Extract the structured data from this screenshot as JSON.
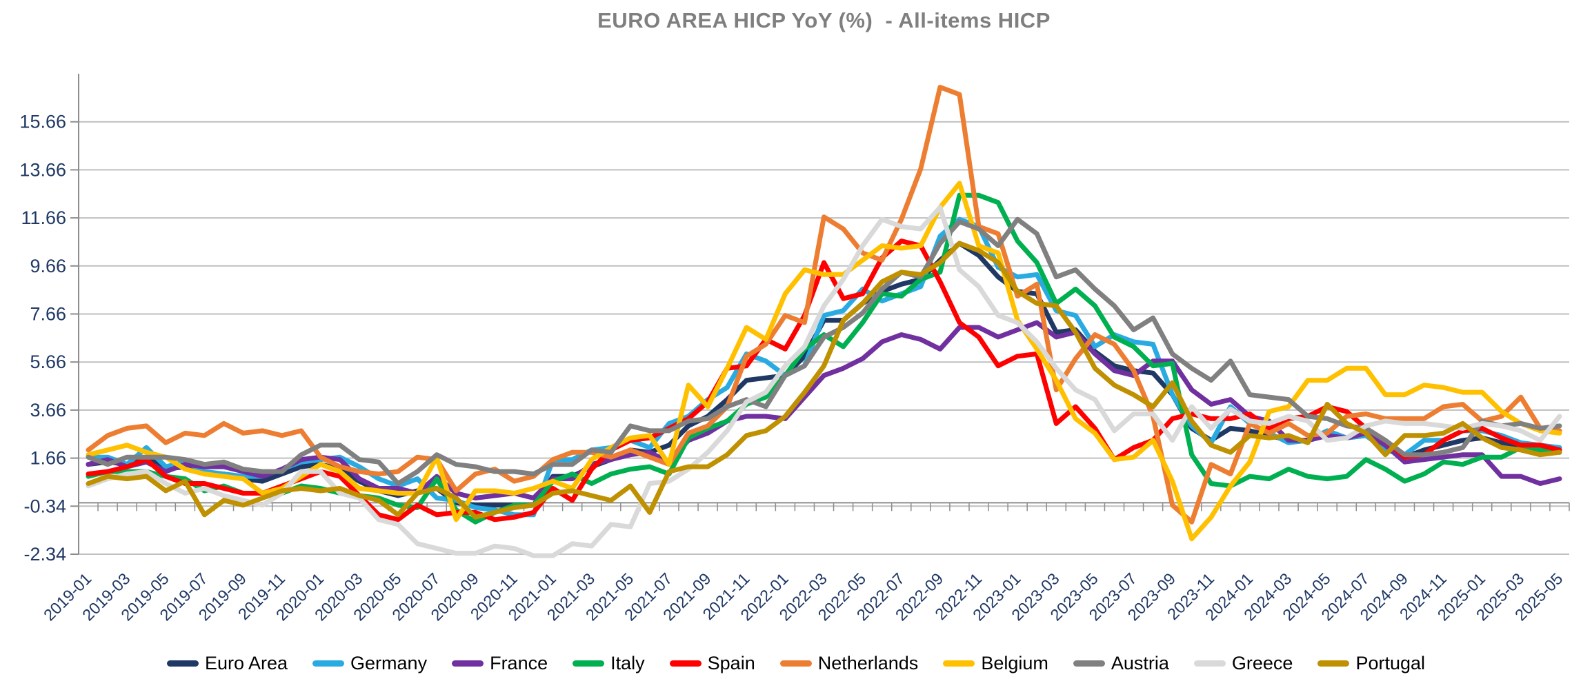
{
  "title": "EURO AREA HICP YoY (%)  - All-items HICP",
  "style": {
    "title_color": "#7F7F7F",
    "label_color": "#1F3864",
    "grid_color": "#BFBFBF",
    "axis_color": "#8C8C8C",
    "background": "#FFFFFF"
  },
  "chart_data": {
    "type": "line",
    "title": "EURO AREA HICP YoY (%)  - All-items HICP",
    "xlabel": "",
    "ylabel": "",
    "ylim": [
      -2.34,
      17.66
    ],
    "grid": true,
    "legend_position": "bottom",
    "x_label_step": 2,
    "y_ticks": [
      {
        "label": "-2.34",
        "value": -2.34
      },
      {
        "label": "-0.34",
        "value": -0.34
      },
      {
        "label": "1.66",
        "value": 1.66
      },
      {
        "label": "3.66",
        "value": 3.66
      },
      {
        "label": "5.66",
        "value": 5.66
      },
      {
        "label": "7.66",
        "value": 7.66
      },
      {
        "label": "9.66",
        "value": 9.66
      },
      {
        "label": "11.66",
        "value": 11.66
      },
      {
        "label": "13.66",
        "value": 13.66
      },
      {
        "label": "15.66",
        "value": 15.66
      }
    ],
    "x": [
      "2019-01",
      "2019-02",
      "2019-03",
      "2019-04",
      "2019-05",
      "2019-06",
      "2019-07",
      "2019-08",
      "2019-09",
      "2019-10",
      "2019-11",
      "2019-12",
      "2020-01",
      "2020-02",
      "2020-03",
      "2020-04",
      "2020-05",
      "2020-06",
      "2020-07",
      "2020-08",
      "2020-09",
      "2020-10",
      "2020-11",
      "2020-12",
      "2021-01",
      "2021-02",
      "2021-03",
      "2021-04",
      "2021-05",
      "2021-06",
      "2021-07",
      "2021-08",
      "2021-09",
      "2021-10",
      "2021-11",
      "2021-12",
      "2022-01",
      "2022-02",
      "2022-03",
      "2022-04",
      "2022-05",
      "2022-06",
      "2022-07",
      "2022-08",
      "2022-09",
      "2022-10",
      "2022-11",
      "2022-12",
      "2023-01",
      "2023-02",
      "2023-03",
      "2023-04",
      "2023-05",
      "2023-06",
      "2023-07",
      "2023-08",
      "2023-09",
      "2023-10",
      "2023-11",
      "2023-12",
      "2024-01",
      "2024-02",
      "2024-03",
      "2024-04",
      "2024-05",
      "2024-06",
      "2024-07",
      "2024-08",
      "2024-09",
      "2024-10",
      "2024-11",
      "2024-12",
      "2025-01",
      "2025-02",
      "2025-03",
      "2025-04",
      "2025-05"
    ],
    "series": [
      {
        "name": "Euro Area",
        "color": "#1F3864",
        "values": [
          1.4,
          1.5,
          1.4,
          1.7,
          1.2,
          1.3,
          1.0,
          1.0,
          0.8,
          0.7,
          1.0,
          1.3,
          1.4,
          1.2,
          0.7,
          0.3,
          0.1,
          0.3,
          0.4,
          -0.2,
          -0.3,
          -0.3,
          -0.3,
          -0.3,
          0.9,
          0.9,
          1.3,
          1.6,
          2.0,
          1.9,
          2.2,
          3.0,
          3.4,
          4.1,
          4.9,
          5.0,
          5.1,
          5.9,
          7.4,
          7.4,
          8.1,
          8.6,
          8.9,
          9.1,
          9.9,
          10.6,
          10.1,
          9.2,
          8.6,
          8.5,
          6.9,
          7.0,
          6.1,
          5.5,
          5.3,
          5.2,
          4.3,
          2.9,
          2.4,
          2.9,
          2.8,
          2.6,
          2.4,
          2.4,
          2.6,
          2.5,
          2.6,
          2.2,
          1.7,
          2.0,
          2.2,
          2.4,
          2.5,
          2.3,
          2.2,
          2.2,
          1.9
        ]
      },
      {
        "name": "Germany",
        "color": "#29ABE2",
        "values": [
          1.7,
          1.7,
          1.4,
          2.1,
          1.3,
          1.5,
          1.1,
          1.0,
          0.9,
          0.9,
          1.2,
          1.5,
          1.6,
          1.7,
          1.3,
          0.8,
          0.5,
          0.8,
          0.0,
          -0.1,
          -0.4,
          -0.5,
          -0.7,
          -0.7,
          1.6,
          1.6,
          2.0,
          2.1,
          2.4,
          2.1,
          3.1,
          3.4,
          4.1,
          4.6,
          6.0,
          5.7,
          5.1,
          5.5,
          7.6,
          7.8,
          8.7,
          8.2,
          8.5,
          8.8,
          10.9,
          11.6,
          11.3,
          9.6,
          9.2,
          9.3,
          7.8,
          7.6,
          6.3,
          6.8,
          6.5,
          6.4,
          4.3,
          3.0,
          2.3,
          3.8,
          3.1,
          2.7,
          2.3,
          2.4,
          2.8,
          2.5,
          2.6,
          2.0,
          1.8,
          2.4,
          2.4,
          2.8,
          2.8,
          2.6,
          2.3,
          2.2,
          2.1
        ]
      },
      {
        "name": "France",
        "color": "#7030A0",
        "values": [
          1.4,
          1.6,
          1.3,
          1.5,
          1.1,
          1.4,
          1.3,
          1.3,
          1.1,
          0.9,
          1.2,
          1.6,
          1.7,
          1.6,
          0.8,
          0.4,
          0.4,
          0.2,
          0.9,
          0.2,
          0.0,
          0.1,
          0.2,
          0.0,
          0.8,
          0.8,
          1.4,
          1.6,
          1.8,
          1.9,
          1.5,
          2.4,
          2.7,
          3.2,
          3.4,
          3.4,
          3.3,
          4.2,
          5.1,
          5.4,
          5.8,
          6.5,
          6.8,
          6.6,
          6.2,
          7.1,
          7.1,
          6.7,
          7.0,
          7.3,
          6.7,
          6.9,
          6.0,
          5.3,
          5.1,
          5.7,
          5.7,
          4.5,
          3.9,
          4.1,
          3.4,
          3.2,
          2.4,
          2.4,
          2.6,
          2.5,
          2.7,
          2.2,
          1.5,
          1.6,
          1.7,
          1.8,
          1.8,
          0.9,
          0.9,
          0.6,
          0.8
        ]
      },
      {
        "name": "Italy",
        "color": "#00B050",
        "values": [
          0.9,
          1.1,
          1.1,
          1.1,
          0.9,
          0.8,
          0.3,
          0.5,
          0.2,
          0.2,
          0.2,
          0.5,
          0.4,
          0.2,
          0.1,
          0.0,
          -0.3,
          -0.4,
          0.8,
          -0.5,
          -1.0,
          -0.6,
          -0.3,
          -0.3,
          0.7,
          1.0,
          0.6,
          1.0,
          1.2,
          1.3,
          1.0,
          2.5,
          2.9,
          3.2,
          3.9,
          4.2,
          5.1,
          6.2,
          6.8,
          6.3,
          7.3,
          8.5,
          8.4,
          9.1,
          9.4,
          12.6,
          12.6,
          12.3,
          10.7,
          9.8,
          8.1,
          8.7,
          8.0,
          6.7,
          6.3,
          5.5,
          5.6,
          1.8,
          0.6,
          0.5,
          0.9,
          0.8,
          1.2,
          0.9,
          0.8,
          0.9,
          1.6,
          1.2,
          0.7,
          1.0,
          1.5,
          1.4,
          1.7,
          1.7,
          2.1,
          2.0,
          1.9
        ]
      },
      {
        "name": "Spain",
        "color": "#FF0000",
        "values": [
          1.0,
          1.1,
          1.3,
          1.6,
          0.9,
          0.6,
          0.6,
          0.4,
          0.2,
          0.2,
          0.5,
          0.8,
          1.1,
          0.9,
          0.1,
          -0.7,
          -0.9,
          -0.3,
          -0.7,
          -0.6,
          -0.6,
          -0.9,
          -0.8,
          -0.6,
          0.4,
          -0.1,
          1.2,
          2.0,
          2.4,
          2.5,
          2.9,
          3.3,
          4.0,
          5.4,
          5.5,
          6.6,
          6.2,
          7.6,
          9.8,
          8.3,
          8.5,
          10.0,
          10.7,
          10.5,
          9.0,
          7.3,
          6.7,
          5.5,
          5.9,
          6.0,
          3.1,
          3.8,
          2.9,
          1.6,
          2.1,
          2.4,
          3.3,
          3.5,
          3.3,
          3.3,
          3.5,
          2.9,
          3.3,
          3.4,
          3.8,
          3.6,
          2.9,
          2.4,
          1.7,
          1.8,
          2.4,
          2.8,
          2.9,
          2.5,
          2.2,
          2.2,
          2.0
        ]
      },
      {
        "name": "Netherlands",
        "color": "#ED7D31",
        "values": [
          2.0,
          2.6,
          2.9,
          3.0,
          2.3,
          2.7,
          2.6,
          3.1,
          2.7,
          2.8,
          2.6,
          2.8,
          1.7,
          1.3,
          1.1,
          1.0,
          1.1,
          1.7,
          1.6,
          0.3,
          1.0,
          1.2,
          0.7,
          0.9,
          1.6,
          1.9,
          1.9,
          1.7,
          2.0,
          1.7,
          1.4,
          2.7,
          3.0,
          3.8,
          5.9,
          6.4,
          7.6,
          7.3,
          11.7,
          11.2,
          10.2,
          9.9,
          11.6,
          13.7,
          17.1,
          16.8,
          11.3,
          11.0,
          8.4,
          8.9,
          4.5,
          5.8,
          6.8,
          6.4,
          5.3,
          3.4,
          -0.3,
          -1.0,
          1.4,
          1.0,
          3.1,
          2.7,
          3.1,
          2.6,
          2.7,
          3.4,
          3.5,
          3.3,
          3.3,
          3.3,
          3.8,
          3.9,
          3.2,
          3.4,
          4.2,
          2.9,
          2.8
        ]
      },
      {
        "name": "Belgium",
        "color": "#FFC000",
        "values": [
          1.8,
          2.0,
          2.2,
          1.9,
          1.7,
          1.2,
          1.0,
          0.9,
          0.8,
          0.2,
          0.4,
          0.9,
          1.4,
          1.1,
          0.4,
          0.3,
          0.2,
          0.2,
          1.7,
          -0.9,
          0.3,
          0.3,
          0.2,
          0.4,
          0.7,
          0.4,
          1.6,
          2.1,
          2.5,
          2.6,
          1.4,
          4.7,
          3.8,
          5.4,
          7.1,
          6.6,
          8.5,
          9.5,
          9.3,
          9.3,
          9.9,
          10.5,
          10.4,
          10.5,
          12.1,
          13.1,
          10.5,
          10.2,
          7.4,
          6.2,
          4.9,
          3.3,
          2.7,
          1.6,
          1.7,
          2.4,
          0.7,
          -1.7,
          -0.8,
          0.5,
          1.5,
          3.6,
          3.8,
          4.9,
          4.9,
          5.4,
          5.4,
          4.3,
          4.3,
          4.7,
          4.6,
          4.4,
          4.4,
          3.6,
          3.1,
          2.8,
          2.7
        ]
      },
      {
        "name": "Austria",
        "color": "#808080",
        "values": [
          1.7,
          1.4,
          1.7,
          1.7,
          1.7,
          1.6,
          1.4,
          1.5,
          1.2,
          1.1,
          1.1,
          1.8,
          2.2,
          2.2,
          1.6,
          1.5,
          0.6,
          1.1,
          1.8,
          1.4,
          1.3,
          1.1,
          1.1,
          1.0,
          1.4,
          1.4,
          2.0,
          1.9,
          3.0,
          2.8,
          2.8,
          3.2,
          3.3,
          3.8,
          4.1,
          3.8,
          5.1,
          5.5,
          6.7,
          7.1,
          7.7,
          8.7,
          9.4,
          9.2,
          10.6,
          11.5,
          11.2,
          10.5,
          11.6,
          11.0,
          9.2,
          9.5,
          8.7,
          8.0,
          7.0,
          7.5,
          6.0,
          5.4,
          4.9,
          5.7,
          4.3,
          4.2,
          4.1,
          3.4,
          3.3,
          3.0,
          2.9,
          2.4,
          1.8,
          1.8,
          1.9,
          2.1,
          3.2,
          3.0,
          3.1,
          2.9,
          3.0
        ]
      },
      {
        "name": "Greece",
        "color": "#D9D9D9",
        "values": [
          0.5,
          0.8,
          1.0,
          1.1,
          0.6,
          0.2,
          0.4,
          0.1,
          -0.1,
          -0.3,
          0.2,
          1.1,
          1.1,
          0.2,
          0.0,
          -0.9,
          -1.1,
          -1.9,
          -2.1,
          -2.3,
          -2.3,
          -2.0,
          -2.1,
          -2.4,
          -2.4,
          -1.9,
          -2.0,
          -1.1,
          -1.2,
          0.6,
          0.7,
          1.2,
          1.9,
          2.8,
          4.0,
          4.4,
          5.5,
          6.3,
          8.0,
          9.1,
          10.5,
          11.6,
          11.3,
          11.2,
          12.1,
          9.5,
          8.8,
          7.6,
          7.3,
          6.5,
          5.4,
          4.5,
          4.1,
          2.8,
          3.5,
          3.5,
          2.4,
          3.8,
          2.9,
          3.7,
          3.2,
          3.1,
          3.4,
          3.2,
          2.4,
          2.5,
          3.0,
          3.2,
          3.1,
          3.1,
          3.0,
          2.9,
          3.1,
          3.0,
          2.8,
          2.4,
          3.4
        ]
      },
      {
        "name": "Portugal",
        "color": "#BF9000",
        "values": [
          0.6,
          0.9,
          0.8,
          0.9,
          0.3,
          0.7,
          -0.7,
          -0.1,
          -0.3,
          0.0,
          0.3,
          0.4,
          0.3,
          0.4,
          0.1,
          -0.1,
          -0.7,
          0.2,
          0.4,
          0.0,
          -0.8,
          -0.6,
          -0.4,
          -0.3,
          0.2,
          0.3,
          0.1,
          -0.1,
          0.5,
          -0.6,
          1.1,
          1.3,
          1.3,
          1.8,
          2.6,
          2.8,
          3.4,
          4.4,
          5.5,
          7.4,
          8.1,
          9.0,
          9.4,
          9.3,
          9.8,
          10.6,
          10.3,
          9.8,
          8.6,
          8.1,
          8.0,
          6.9,
          5.4,
          4.7,
          4.3,
          3.8,
          4.8,
          3.2,
          2.2,
          1.9,
          2.6,
          2.5,
          2.6,
          2.3,
          3.9,
          3.1,
          2.7,
          1.8,
          2.6,
          2.6,
          2.7,
          3.1,
          2.5,
          2.1,
          2.0,
          1.8,
          1.9
        ]
      }
    ]
  }
}
